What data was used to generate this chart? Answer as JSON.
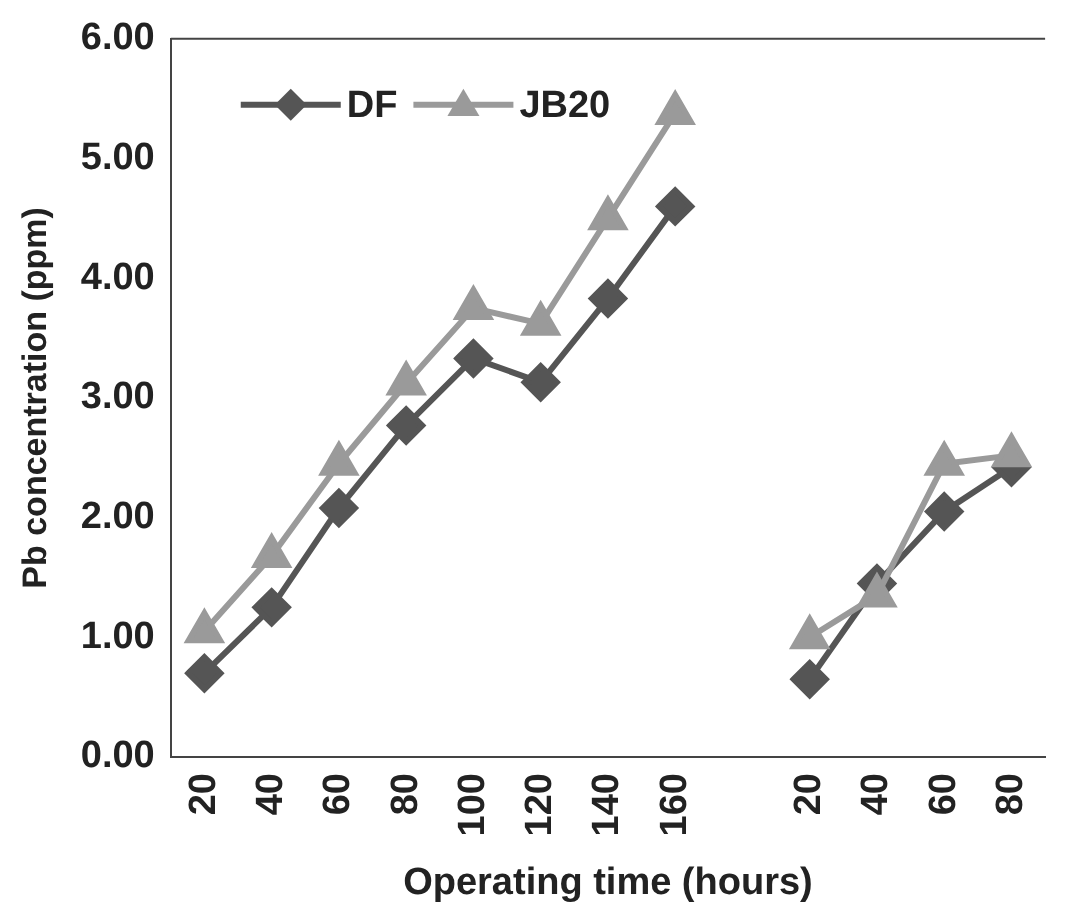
{
  "chart_data": {
    "type": "line",
    "xlabel": "Operating time (hours)",
    "ylabel": "Pb concentration (ppm)",
    "categories": [
      "20",
      "40",
      "60",
      "80",
      "100",
      "120",
      "140",
      "160",
      null,
      "20",
      "40",
      "60",
      "80"
    ],
    "series": [
      {
        "name": "DF",
        "color": "#555555",
        "marker": "diamond",
        "values": [
          0.7,
          1.25,
          2.08,
          2.77,
          3.33,
          3.13,
          3.83,
          4.6,
          null,
          0.65,
          1.45,
          2.05,
          2.42
        ]
      },
      {
        "name": "JB20",
        "color": "#9a9a9a",
        "marker": "triangle",
        "values": [
          1.05,
          1.68,
          2.45,
          3.12,
          3.75,
          3.62,
          4.5,
          5.38,
          null,
          1.0,
          1.35,
          2.45,
          2.52
        ]
      }
    ],
    "ylim": [
      0,
      6
    ],
    "yticks": [
      {
        "value": 0,
        "label": "0.00"
      },
      {
        "value": 1,
        "label": "1.00"
      },
      {
        "value": 2,
        "label": "2.00"
      },
      {
        "value": 3,
        "label": "3.00"
      },
      {
        "value": 4,
        "label": "4.00"
      },
      {
        "value": 5,
        "label": "5.00"
      },
      {
        "value": 6,
        "label": "6.00"
      }
    ],
    "grid": false,
    "legend": "top left",
    "line_style": "solid"
  }
}
